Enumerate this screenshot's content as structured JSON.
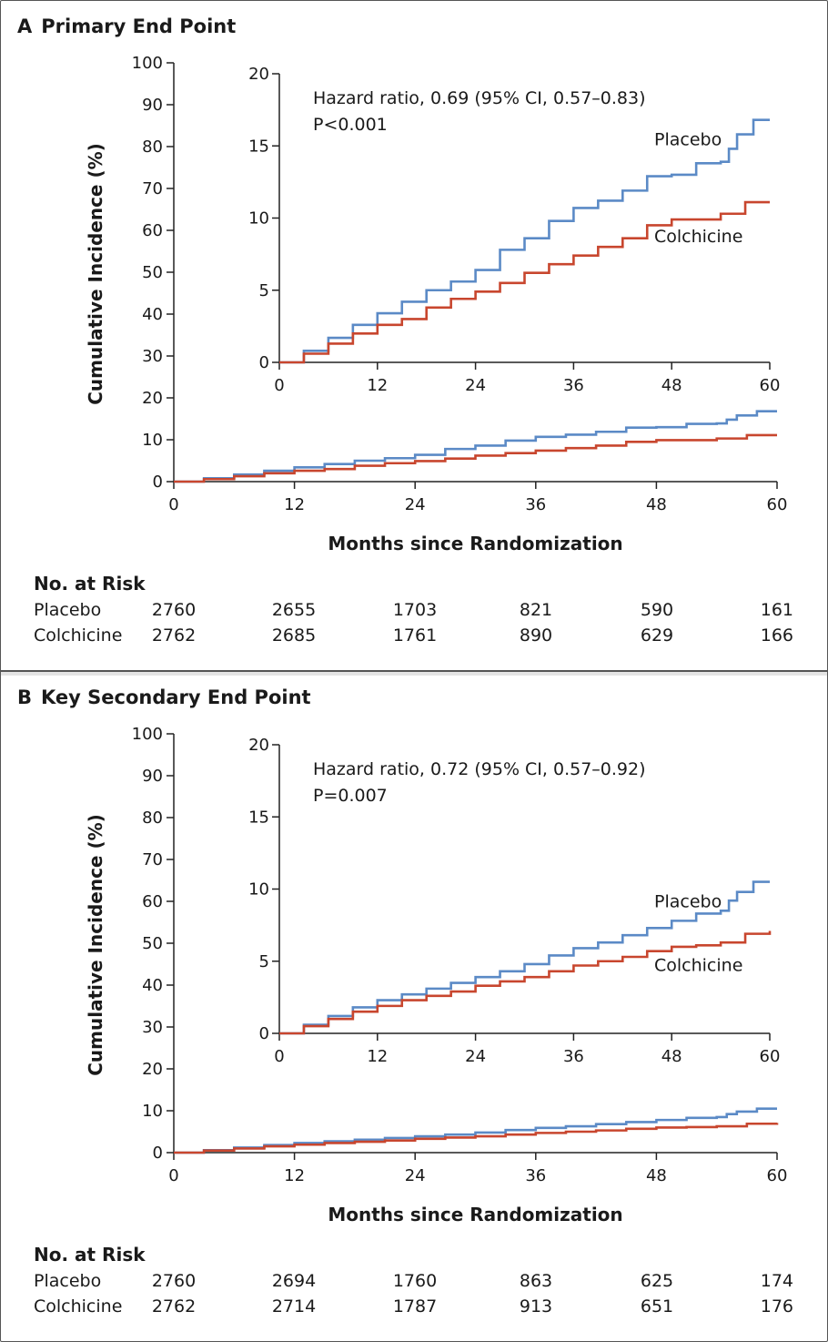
{
  "colors": {
    "placebo": "#5b8ac6",
    "colchicine": "#c8462e"
  },
  "panels": [
    {
      "letter": "A",
      "title": "Primary End Point",
      "hr_text": "Hazard ratio, 0.69 (95% CI, 0.57–0.83)",
      "p_text": "P<0.001",
      "risk": {
        "header": "No. at Risk",
        "rows": [
          {
            "label": "Placebo",
            "values": [
              "2760",
              "2655",
              "1703",
              "821",
              "590",
              "161"
            ]
          },
          {
            "label": "Colchicine",
            "values": [
              "2762",
              "2685",
              "1761",
              "890",
              "629",
              "166"
            ]
          }
        ]
      }
    },
    {
      "letter": "B",
      "title": "Key Secondary End Point",
      "hr_text": "Hazard ratio, 0.72 (95% CI, 0.57–0.92)",
      "p_text": "P=0.007",
      "risk": {
        "header": "No. at Risk",
        "rows": [
          {
            "label": "Placebo",
            "values": [
              "2760",
              "2694",
              "1760",
              "863",
              "625",
              "174"
            ]
          },
          {
            "label": "Colchicine",
            "values": [
              "2762",
              "2714",
              "1787",
              "913",
              "651",
              "176"
            ]
          }
        ]
      }
    }
  ],
  "chart_data": [
    {
      "type": "line",
      "title": "Primary End Point",
      "xlabel": "Months since Randomization",
      "ylabel": "Cumulative Incidence (%)",
      "xlim": [
        0,
        60
      ],
      "ylim": [
        0,
        100
      ],
      "xticks": [
        0,
        12,
        24,
        36,
        48,
        60
      ],
      "yticks": [
        0,
        10,
        20,
        30,
        40,
        50,
        60,
        70,
        80,
        90,
        100
      ],
      "inset": {
        "xlim": [
          0,
          60
        ],
        "ylim": [
          0,
          20
        ],
        "xticks": [
          0,
          12,
          24,
          36,
          48,
          60
        ],
        "yticks": [
          0,
          5,
          10,
          15,
          20
        ]
      },
      "series": [
        {
          "name": "Placebo",
          "x": [
            0,
            3,
            6,
            9,
            12,
            15,
            18,
            21,
            24,
            27,
            30,
            33,
            36,
            39,
            42,
            45,
            48,
            51,
            54,
            55,
            56,
            58,
            60
          ],
          "y": [
            0,
            0.8,
            1.7,
            2.6,
            3.4,
            4.2,
            5.0,
            5.6,
            6.4,
            7.8,
            8.6,
            9.8,
            10.7,
            11.2,
            11.9,
            12.9,
            13.0,
            13.8,
            13.9,
            14.8,
            15.8,
            16.8,
            16.8
          ]
        },
        {
          "name": "Colchicine",
          "x": [
            0,
            3,
            6,
            9,
            12,
            15,
            18,
            21,
            24,
            27,
            30,
            33,
            36,
            39,
            42,
            45,
            48,
            51,
            54,
            57,
            60
          ],
          "y": [
            0,
            0.6,
            1.3,
            2.0,
            2.6,
            3.0,
            3.8,
            4.4,
            4.9,
            5.5,
            6.2,
            6.8,
            7.4,
            8.0,
            8.6,
            9.5,
            9.9,
            9.9,
            10.3,
            11.1,
            11.1
          ]
        }
      ]
    },
    {
      "type": "line",
      "title": "Key Secondary End Point",
      "xlabel": "Months since Randomization",
      "ylabel": "Cumulative Incidence (%)",
      "xlim": [
        0,
        60
      ],
      "ylim": [
        0,
        100
      ],
      "xticks": [
        0,
        12,
        24,
        36,
        48,
        60
      ],
      "yticks": [
        0,
        10,
        20,
        30,
        40,
        50,
        60,
        70,
        80,
        90,
        100
      ],
      "inset": {
        "xlim": [
          0,
          60
        ],
        "ylim": [
          0,
          20
        ],
        "xticks": [
          0,
          12,
          24,
          36,
          48,
          60
        ],
        "yticks": [
          0,
          5,
          10,
          15,
          20
        ]
      },
      "series": [
        {
          "name": "Placebo",
          "x": [
            0,
            3,
            6,
            9,
            12,
            15,
            18,
            21,
            24,
            27,
            30,
            33,
            36,
            39,
            42,
            45,
            48,
            51,
            54,
            55,
            56,
            58,
            60
          ],
          "y": [
            0,
            0.6,
            1.2,
            1.8,
            2.3,
            2.7,
            3.1,
            3.5,
            3.9,
            4.3,
            4.8,
            5.4,
            5.9,
            6.3,
            6.8,
            7.3,
            7.8,
            8.3,
            8.5,
            9.2,
            9.8,
            10.5,
            10.5
          ]
        },
        {
          "name": "Colchicine",
          "x": [
            0,
            3,
            6,
            9,
            12,
            15,
            18,
            21,
            24,
            27,
            30,
            33,
            36,
            39,
            42,
            45,
            48,
            51,
            54,
            57,
            60
          ],
          "y": [
            0,
            0.5,
            1.0,
            1.5,
            1.9,
            2.3,
            2.6,
            2.9,
            3.3,
            3.6,
            3.9,
            4.3,
            4.7,
            5.0,
            5.3,
            5.7,
            6.0,
            6.1,
            6.3,
            6.9,
            7.1
          ]
        }
      ]
    }
  ]
}
